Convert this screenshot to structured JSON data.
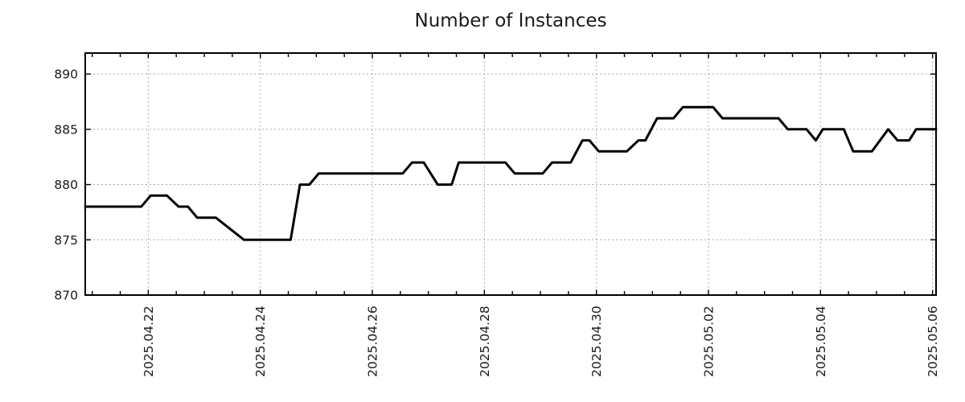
{
  "chart_data": {
    "type": "line",
    "title": "Number of Instances",
    "xlabel": "",
    "ylabel": "",
    "legend": "none",
    "grid": "dotted",
    "colors": {
      "line": "#000000",
      "grid": "#a8a8a8",
      "axis": "#000000",
      "text": "#1a1a1a",
      "background": "#ffffff"
    },
    "x_start": "2025-04-20T21:00",
    "x_end": "2025-05-06T01:30",
    "x_minor_tick_hours": 12,
    "x_major_ticks": [
      {
        "date": "2025-04-22T00:00",
        "label": "2025.04.22"
      },
      {
        "date": "2025-04-24T00:00",
        "label": "2025.04.24"
      },
      {
        "date": "2025-04-26T00:00",
        "label": "2025.04.26"
      },
      {
        "date": "2025-04-28T00:00",
        "label": "2025.04.28"
      },
      {
        "date": "2025-04-30T00:00",
        "label": "2025.04.30"
      },
      {
        "date": "2025-05-02T00:00",
        "label": "2025.05.02"
      },
      {
        "date": "2025-05-04T00:00",
        "label": "2025.05.04"
      },
      {
        "date": "2025-05-06T00:00",
        "label": "2025.05.06"
      }
    ],
    "y_ticks": [
      870,
      875,
      880,
      885,
      890
    ],
    "ylim": [
      870,
      891.9
    ],
    "series": [
      {
        "name": "instances",
        "points": [
          [
            "2025-04-20T21:00",
            878
          ],
          [
            "2025-04-21T21:00",
            878
          ],
          [
            "2025-04-22T01:00",
            879
          ],
          [
            "2025-04-22T08:00",
            879
          ],
          [
            "2025-04-22T13:00",
            878
          ],
          [
            "2025-04-22T17:00",
            878
          ],
          [
            "2025-04-22T21:00",
            877
          ],
          [
            "2025-04-23T05:00",
            877
          ],
          [
            "2025-04-23T17:00",
            875
          ],
          [
            "2025-04-24T13:00",
            875
          ],
          [
            "2025-04-24T17:00",
            880
          ],
          [
            "2025-04-24T21:00",
            880
          ],
          [
            "2025-04-25T01:00",
            881
          ],
          [
            "2025-04-26T13:00",
            881
          ],
          [
            "2025-04-26T17:00",
            882
          ],
          [
            "2025-04-26T22:00",
            882
          ],
          [
            "2025-04-27T04:00",
            880
          ],
          [
            "2025-04-27T10:00",
            880
          ],
          [
            "2025-04-27T13:00",
            882
          ],
          [
            "2025-04-28T09:00",
            882
          ],
          [
            "2025-04-28T13:00",
            881
          ],
          [
            "2025-04-29T01:00",
            881
          ],
          [
            "2025-04-29T05:00",
            882
          ],
          [
            "2025-04-29T13:00",
            882
          ],
          [
            "2025-04-29T18:00",
            884
          ],
          [
            "2025-04-29T21:00",
            884
          ],
          [
            "2025-04-30T01:00",
            883
          ],
          [
            "2025-04-30T13:00",
            883
          ],
          [
            "2025-04-30T18:00",
            884
          ],
          [
            "2025-04-30T21:00",
            884
          ],
          [
            "2025-05-01T02:00",
            886
          ],
          [
            "2025-05-01T09:00",
            886
          ],
          [
            "2025-05-01T13:00",
            887
          ],
          [
            "2025-05-02T02:00",
            887
          ],
          [
            "2025-05-02T06:00",
            886
          ],
          [
            "2025-05-03T06:00",
            886
          ],
          [
            "2025-05-03T10:00",
            885
          ],
          [
            "2025-05-03T18:00",
            885
          ],
          [
            "2025-05-03T22:00",
            884
          ],
          [
            "2025-05-04T01:00",
            885
          ],
          [
            "2025-05-04T10:00",
            885
          ],
          [
            "2025-05-04T14:00",
            883
          ],
          [
            "2025-05-04T22:00",
            883
          ],
          [
            "2025-05-05T05:00",
            885
          ],
          [
            "2025-05-05T09:00",
            884
          ],
          [
            "2025-05-05T14:00",
            884
          ],
          [
            "2025-05-05T17:00",
            885
          ],
          [
            "2025-05-06T01:30",
            885
          ]
        ]
      }
    ]
  }
}
